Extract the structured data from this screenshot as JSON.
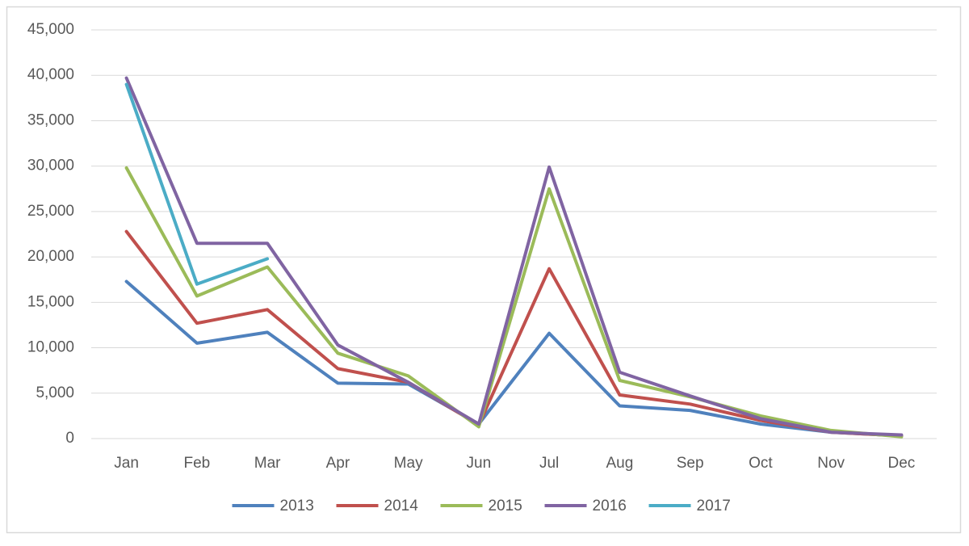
{
  "chart_data": {
    "type": "line",
    "categories": [
      "Jan",
      "Feb",
      "Mar",
      "Apr",
      "May",
      "Jun",
      "Jul",
      "Aug",
      "Sep",
      "Oct",
      "Nov",
      "Dec"
    ],
    "series": [
      {
        "name": "2013",
        "color": "#4f81bd",
        "values": [
          17300,
          10500,
          11700,
          6100,
          6000,
          1600,
          11600,
          3600,
          3100,
          1600,
          700,
          300
        ]
      },
      {
        "name": "2014",
        "color": "#c0504d",
        "values": [
          22800,
          12700,
          14200,
          7700,
          6200,
          1500,
          18700,
          4800,
          3800,
          2000,
          700,
          300
        ]
      },
      {
        "name": "2015",
        "color": "#9bbb59",
        "values": [
          29800,
          15700,
          18900,
          9400,
          6900,
          1300,
          27500,
          6400,
          4600,
          2500,
          900,
          200
        ]
      },
      {
        "name": "2016",
        "color": "#8064a2",
        "values": [
          39700,
          21500,
          21500,
          10300,
          6200,
          1600,
          29900,
          7300,
          4700,
          2200,
          700,
          400
        ]
      },
      {
        "name": "2017",
        "color": "#4bacc6",
        "values": [
          39000,
          17000,
          19800,
          null,
          null,
          null,
          null,
          null,
          null,
          null,
          null,
          null
        ]
      }
    ],
    "ylim": [
      0,
      45000
    ],
    "yticks": [
      0,
      {
        "value": 5000,
        "label": "5,000"
      },
      {
        "value": 10000,
        "label": "10,000"
      },
      {
        "value": 15000,
        "label": "15,000"
      },
      {
        "value": 20000,
        "label": "20,000"
      },
      {
        "value": 25000,
        "label": "25,000"
      },
      {
        "value": 30000,
        "label": "30,000"
      },
      {
        "value": 35000,
        "label": "35,000"
      },
      {
        "value": 40000,
        "label": "40,000"
      },
      {
        "value": 45000,
        "label": "45,000"
      }
    ],
    "grid": true,
    "legend": "bottom"
  }
}
